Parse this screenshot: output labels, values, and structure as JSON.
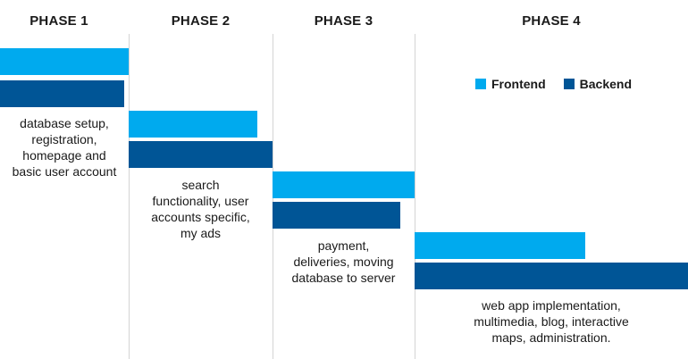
{
  "legend": {
    "frontend": {
      "label": "Frontend",
      "color": "#00AAEE"
    },
    "backend": {
      "label": "Backend",
      "color": "#005596"
    }
  },
  "phases": [
    {
      "title": "PHASE 1",
      "description": [
        "database setup,",
        "registration,",
        "homepage and",
        "basic user account"
      ]
    },
    {
      "title": "PHASE 2",
      "description": [
        "search",
        "functionality, user",
        "accounts specific,",
        "my ads"
      ]
    },
    {
      "title": "PHASE 3",
      "description": [
        "payment,",
        "deliveries, moving",
        "database to server"
      ]
    },
    {
      "title": "PHASE 4",
      "description": [
        "web app implementation,",
        "multimedia, blog, interactive",
        "maps, administration."
      ]
    }
  ]
}
